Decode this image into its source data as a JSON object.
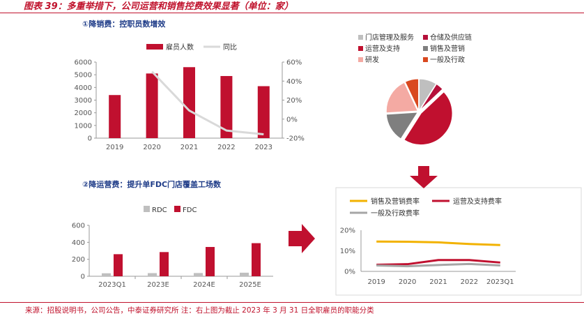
{
  "page": {
    "title": "图表 39：多重举措下，公司运营和销售控费效果显著（单位：家）",
    "section1_title": "①降销费：控职员数增效",
    "section2_title": "②降运营费：提升单FDC门店覆盖工场数",
    "footer": "来源：招股说明书，公司公告，中泰证券研究所 注：右上图为截止 2023 年 3 月 31 日全职雇员的职能分类"
  },
  "chart_data": [
    {
      "id": "employees",
      "type": "bar",
      "categories": [
        "2019",
        "2020",
        "2021",
        "2022",
        "2023"
      ],
      "series": [
        {
          "name": "雇员人数",
          "values": [
            3400,
            5100,
            5600,
            4900,
            4100
          ],
          "color": "#c0102f",
          "axis": "left"
        },
        {
          "name": "同比",
          "values": [
            null,
            50,
            9,
            -12,
            -16
          ],
          "color": "#d9d9d9",
          "axis": "right",
          "type": "line"
        }
      ],
      "ylim": [
        0,
        6000
      ],
      "yticks": [
        "0",
        "1000",
        "2000",
        "3000",
        "4000",
        "5000",
        "6000"
      ],
      "y2lim": [
        -20,
        60
      ],
      "y2ticks": [
        "-20%",
        "0%",
        "20%",
        "40%",
        "60%"
      ]
    },
    {
      "id": "fdc",
      "type": "bar",
      "categories": [
        "2023Q1",
        "2023E",
        "2024E",
        "2025E"
      ],
      "series": [
        {
          "name": "RDC",
          "values": [
            35,
            37,
            38,
            42
          ],
          "color": "#bfbfbf"
        },
        {
          "name": "FDC",
          "values": [
            260,
            285,
            345,
            390
          ],
          "color": "#c0102f"
        }
      ],
      "ylim": [
        0,
        600
      ],
      "yticks": [
        "0",
        "200",
        "400",
        "600"
      ]
    },
    {
      "id": "functions",
      "type": "pie",
      "labels": [
        "门店管理及服务",
        "仓储及供应链",
        "运营及支持",
        "销售及营销",
        "研发",
        "一般及行政"
      ],
      "values": [
        9,
        4,
        46,
        15,
        19,
        7
      ],
      "colors": [
        "#bfbfbf",
        "#b5103a",
        "#c0102f",
        "#7f7f7f",
        "#f4aaa3",
        "#d9481f"
      ]
    },
    {
      "id": "expense_rates",
      "type": "line",
      "categories": [
        "2019",
        "2020",
        "2021",
        "2022",
        "2023Q1"
      ],
      "series": [
        {
          "name": "销售及营销费率",
          "values": [
            14.5,
            14.4,
            14.1,
            13.3,
            12.8
          ],
          "color": "#f2b200"
        },
        {
          "name": "运营及支持费率",
          "values": [
            3.2,
            3.5,
            5.5,
            5.5,
            4.3
          ],
          "color": "#c0102f"
        },
        {
          "name": "一般及行政费率",
          "values": [
            2.9,
            2.5,
            3.1,
            3.6,
            2.9
          ],
          "color": "#a6a6a6"
        }
      ],
      "ylim": [
        0,
        20
      ],
      "yticks": [
        "0%",
        "10%",
        "20%"
      ]
    }
  ]
}
